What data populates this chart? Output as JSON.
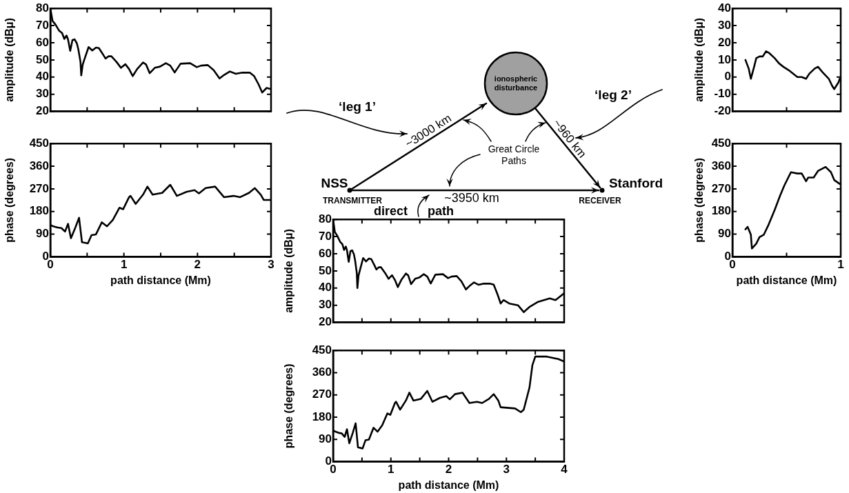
{
  "chart_data": [
    {
      "type": "line",
      "ylabel": "amplitude (dBμ)",
      "color": "#000000",
      "marker": "none",
      "line_style": "solid",
      "tick_labels": "y",
      "xlim": [
        0,
        3
      ],
      "ylim": [
        20,
        80
      ],
      "xticks": [
        0,
        {
          "value": 0.5,
          "label": null
        },
        1,
        {
          "value": 1.5,
          "label": null
        },
        2,
        {
          "value": 2.5,
          "label": null
        },
        3
      ],
      "yticks": [
        20,
        30,
        40,
        50,
        60,
        70,
        80
      ],
      "x": [
        0,
        0.03,
        0.07,
        0.12,
        0.16,
        0.19,
        0.22,
        0.24,
        0.27,
        0.3,
        0.33,
        0.36,
        0.38,
        0.41,
        0.42,
        0.44,
        0.47,
        0.52,
        0.57,
        0.62,
        0.66,
        0.71,
        0.75,
        0.79,
        0.83,
        0.9,
        0.96,
        1.02,
        1.07,
        1.12,
        1.18,
        1.26,
        1.3,
        1.35,
        1.42,
        1.49,
        1.57,
        1.63,
        1.69,
        1.77,
        1.9,
        1.99,
        2.05,
        2.14,
        2.22,
        2.3,
        2.36,
        2.44,
        2.52,
        2.61,
        2.71,
        2.77,
        2.83,
        2.88,
        2.94,
        3.0
      ],
      "values": [
        80,
        72.7,
        70.6,
        67,
        65.6,
        62.2,
        64.2,
        62,
        55.3,
        61.5,
        62,
        59.7,
        56.3,
        48.8,
        41,
        47.3,
        51.2,
        57.5,
        55.5,
        57.2,
        56.9,
        53.6,
        50.8,
        52.1,
        52.1,
        48.8,
        45.4,
        47.5,
        44.7,
        40.6,
        44.7,
        48.5,
        47.4,
        42.3,
        45.4,
        46.1,
        48.1,
        46.7,
        42.7,
        47.8,
        48.1,
        45.8,
        46.7,
        47,
        44,
        39.2,
        41.2,
        43.3,
        41.9,
        42.6,
        42.6,
        40.6,
        35.8,
        31,
        33.7,
        33
      ]
    },
    {
      "type": "line",
      "xlabel": "path distance (Mm)",
      "ylabel": "phase (degrees)",
      "color": "#000000",
      "marker": "none",
      "line_style": "solid",
      "xlim": [
        0,
        3
      ],
      "ylim": [
        0,
        450
      ],
      "xticks": [
        0,
        {
          "value": 0.5,
          "label": null
        },
        1,
        {
          "value": 1.5,
          "label": null
        },
        2,
        {
          "value": 2.5,
          "label": null
        },
        3
      ],
      "yticks": [
        0,
        90,
        180,
        270,
        360,
        450
      ],
      "x": [
        0,
        0.04,
        0.1,
        0.15,
        0.2,
        0.24,
        0.28,
        0.34,
        0.39,
        0.43,
        0.51,
        0.56,
        0.62,
        0.7,
        0.77,
        0.85,
        0.94,
        0.99,
        1.07,
        1.09,
        1.16,
        1.26,
        1.32,
        1.39,
        1.52,
        1.63,
        1.72,
        1.85,
        1.96,
        2.02,
        2.11,
        2.24,
        2.36,
        2.49,
        2.58,
        2.7,
        2.78,
        2.86,
        2.9,
        3.0
      ],
      "values": [
        126,
        121,
        116,
        114,
        100,
        131,
        74,
        116,
        155,
        58,
        53,
        86,
        89,
        137,
        121,
        147,
        195,
        189,
        237,
        242,
        210,
        247,
        279,
        247,
        254,
        286,
        242,
        258,
        265,
        252,
        273,
        279,
        237,
        242,
        237,
        254,
        273,
        247,
        226,
        226
      ]
    },
    {
      "type": "line",
      "ylabel": "amplitude (dBμ)",
      "color": "#000000",
      "marker": "none",
      "line_style": "solid",
      "tick_labels": "y",
      "xlim": [
        0,
        1
      ],
      "ylim": [
        -20,
        40
      ],
      "xticks": [
        0,
        {
          "value": 0.5,
          "label": null
        },
        1
      ],
      "yticks": [
        -20,
        -10,
        0,
        10,
        20,
        30,
        40
      ],
      "x": [
        0.12,
        0.15,
        0.17,
        0.2,
        0.22,
        0.25,
        0.28,
        0.31,
        0.34,
        0.39,
        0.43,
        0.47,
        0.52,
        0.56,
        0.6,
        0.64,
        0.68,
        0.71,
        0.76,
        0.79,
        0.83,
        0.89,
        0.92,
        0.94,
        0.98,
        0.99
      ],
      "values": [
        10,
        5,
        -1,
        6,
        11,
        12,
        12,
        15,
        14,
        11,
        8,
        6,
        4,
        2,
        0,
        0,
        -1,
        2,
        5,
        6,
        3,
        -1,
        -5,
        -7,
        -3,
        -1
      ]
    },
    {
      "type": "line",
      "xlabel": "path distance (Mm)",
      "ylabel": "phase (degrees)",
      "color": "#000000",
      "marker": "none",
      "line_style": "solid",
      "xlim": [
        0,
        1
      ],
      "ylim": [
        0,
        450
      ],
      "xticks": [
        0,
        {
          "value": 0.5,
          "label": null
        },
        1
      ],
      "yticks": [
        0,
        90,
        180,
        270,
        360,
        450
      ],
      "x": [
        0.12,
        0.14,
        0.17,
        0.18,
        0.22,
        0.25,
        0.29,
        0.33,
        0.39,
        0.44,
        0.48,
        0.54,
        0.6,
        0.64,
        0.68,
        0.7,
        0.75,
        0.79,
        0.86,
        0.91,
        0.94,
        0.99
      ],
      "values": [
        109,
        119,
        88,
        33,
        52,
        78,
        88,
        124,
        186,
        243,
        284,
        336,
        331,
        331,
        300,
        315,
        315,
        341,
        357,
        336,
        305,
        290
      ]
    },
    {
      "type": "line",
      "ylabel": "amplitude (dBμ)",
      "color": "#000000",
      "marker": "none",
      "line_style": "solid",
      "tick_labels": "y",
      "xlim": [
        0,
        4
      ],
      "ylim": [
        20,
        80
      ],
      "xticks": [
        0,
        {
          "value": 0.5,
          "label": null
        },
        1,
        {
          "value": 1.5,
          "label": null
        },
        2,
        {
          "value": 2.5,
          "label": null
        },
        3,
        {
          "value": 3.5,
          "label": null
        },
        4
      ],
      "yticks": [
        20,
        30,
        40,
        50,
        60,
        70,
        80
      ],
      "x": [
        0,
        0.03,
        0.07,
        0.12,
        0.16,
        0.19,
        0.22,
        0.24,
        0.27,
        0.3,
        0.33,
        0.36,
        0.38,
        0.41,
        0.42,
        0.44,
        0.47,
        0.52,
        0.57,
        0.62,
        0.66,
        0.71,
        0.75,
        0.79,
        0.83,
        0.9,
        0.96,
        1.02,
        1.07,
        1.12,
        1.18,
        1.26,
        1.3,
        1.35,
        1.42,
        1.49,
        1.57,
        1.63,
        1.69,
        1.77,
        1.9,
        1.99,
        2.05,
        2.14,
        2.22,
        2.3,
        2.36,
        2.44,
        2.52,
        2.61,
        2.71,
        2.78,
        2.85,
        2.9,
        2.95,
        3.05,
        3.2,
        3.3,
        3.4,
        3.55,
        3.75,
        3.85,
        4.0
      ],
      "values": [
        80,
        72.7,
        70.6,
        67,
        65.6,
        62.2,
        64.2,
        62,
        55.3,
        61.5,
        62,
        59.7,
        56.3,
        48.8,
        40,
        47.3,
        51.2,
        57.5,
        55.5,
        57.2,
        56.9,
        53.6,
        50.8,
        52.1,
        52.1,
        48.8,
        45.4,
        47.5,
        44.7,
        40.6,
        44.7,
        48.5,
        47.4,
        42.3,
        45.4,
        46.1,
        48.1,
        46.7,
        42.7,
        47.8,
        48.1,
        45.8,
        46.7,
        47,
        44,
        39.2,
        41.2,
        43.3,
        41.9,
        42.6,
        42.6,
        42,
        36,
        31,
        33,
        31,
        30,
        26,
        29,
        32,
        34,
        33,
        37
      ]
    },
    {
      "type": "line",
      "xlabel": "path distance (Mm)",
      "ylabel": "phase (degrees)",
      "color": "#000000",
      "marker": "none",
      "line_style": "solid",
      "xlim": [
        0,
        4
      ],
      "ylim": [
        0,
        450
      ],
      "xticks": [
        0,
        {
          "value": 0.5,
          "label": null
        },
        1,
        {
          "value": 1.5,
          "label": null
        },
        2,
        {
          "value": 2.5,
          "label": null
        },
        3,
        {
          "value": 3.5,
          "label": null
        },
        4
      ],
      "yticks": [
        0,
        90,
        180,
        270,
        360,
        450
      ],
      "x": [
        0,
        0.04,
        0.1,
        0.15,
        0.2,
        0.24,
        0.28,
        0.34,
        0.39,
        0.43,
        0.51,
        0.56,
        0.62,
        0.7,
        0.77,
        0.85,
        0.94,
        0.99,
        1.07,
        1.09,
        1.16,
        1.26,
        1.32,
        1.39,
        1.52,
        1.63,
        1.72,
        1.85,
        1.96,
        2.02,
        2.11,
        2.24,
        2.36,
        2.49,
        2.58,
        2.7,
        2.78,
        2.86,
        2.9,
        3.15,
        3.25,
        3.3,
        3.4,
        3.45,
        3.5,
        3.7,
        3.9,
        4.0
      ],
      "values": [
        126,
        121,
        116,
        114,
        100,
        131,
        74,
        116,
        155,
        58,
        53,
        86,
        89,
        137,
        121,
        147,
        195,
        189,
        237,
        242,
        210,
        247,
        279,
        247,
        254,
        286,
        242,
        258,
        265,
        252,
        273,
        279,
        237,
        242,
        237,
        254,
        273,
        247,
        220,
        215,
        200,
        210,
        300,
        390,
        425,
        425,
        415,
        405
      ]
    },
    {
      "type": "other",
      "annotations": [
        "‘leg 1’",
        "‘leg 2’",
        "ionospheric disturbance",
        "~3000 km",
        "~960 km",
        "Great Circle Paths",
        "NSS",
        "TRANSMITTER",
        "Stanford",
        "RECEIVER",
        "~3950 km",
        "direct path"
      ]
    }
  ]
}
